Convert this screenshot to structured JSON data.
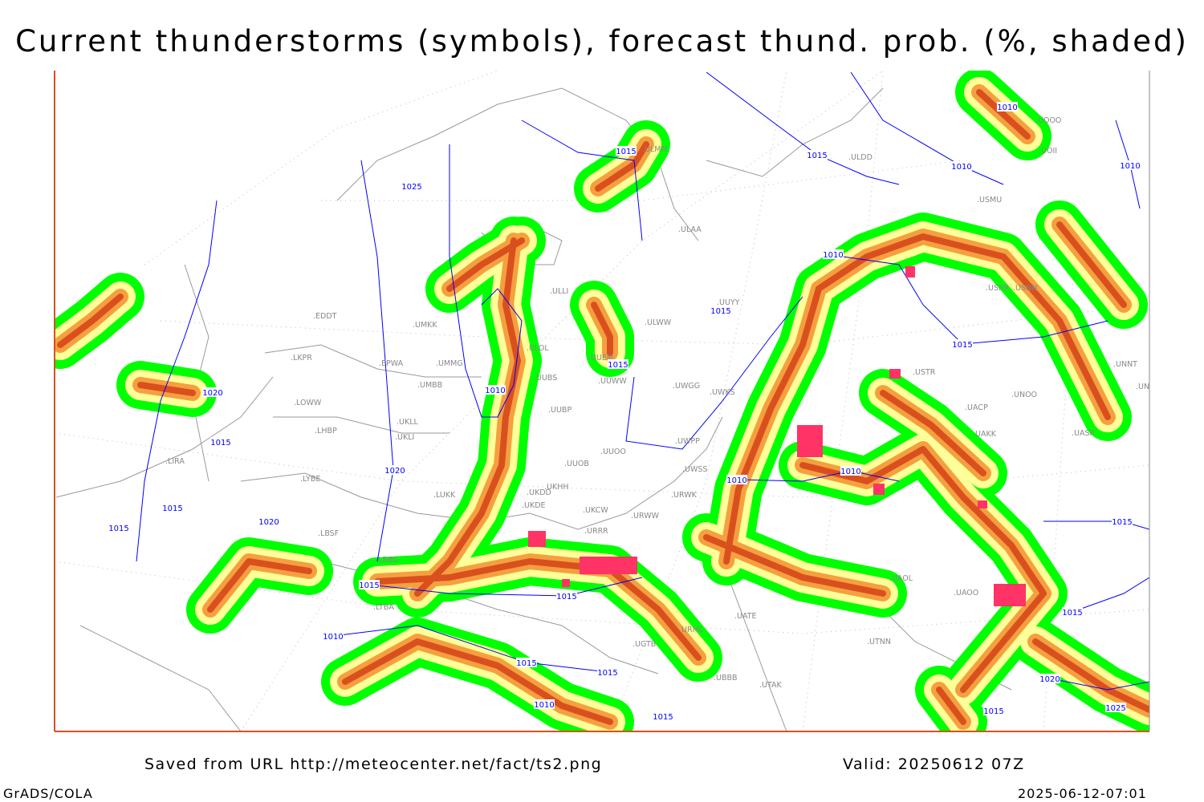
{
  "title": "Current thunderstorms (symbols), forecast thund. prob. (%, shaded)",
  "footer": {
    "source": "Saved from URL http://meteocenter.net/fact/ts2.png",
    "valid": "Valid: 20250612 07Z",
    "software": "GrADS/COLA",
    "timestamp": "2025-06-12-07:01"
  },
  "colors": {
    "prob_low": "#00ff00",
    "prob_mid": "#ffff99",
    "prob_high": "#f5a040",
    "prob_max": "#d9501e",
    "thunderstorm_symbol": "#ff3366",
    "isobars": "#0000ff",
    "coastlines_borders": "#999999"
  },
  "stations": [
    "EDDT",
    "LKPR",
    "EPWA",
    "UMKK",
    "UMMG",
    "UMBB",
    "LOWW",
    "LHBP",
    "UKLL",
    "UKLI",
    "LYBE",
    "LUKK",
    "LBSF",
    "LBBG",
    "LTBA",
    "UKHH",
    "UKDD",
    "UKDE",
    "UKCW",
    "URRR",
    "URWW",
    "UWPP",
    "UWSS",
    "URWK",
    "UWGG",
    "UWKS",
    "ULWW",
    "UUWW",
    "UUEM",
    "ULOL",
    "UUBS",
    "UUBP",
    "UUOO",
    "UUOB",
    "ULAA",
    "ULLI",
    "ULDD",
    "ULMM",
    "UUYY",
    "USTR",
    "UACP",
    "UNOO",
    "UNNT",
    "UNBB",
    "UASP",
    "UAKK",
    "UAOL",
    "UAOO",
    "UATE",
    "UTAK",
    "UTNN",
    "URML",
    "UBBB",
    "UGTB",
    "USMU",
    "USNN",
    "USRR",
    "UOOO",
    "UOII",
    "LIRA"
  ],
  "isobar_labels": [
    "1010",
    "1015",
    "1015",
    "1010",
    "1010",
    "1025",
    "1010",
    "1015",
    "1015",
    "1015",
    "1010",
    "1020",
    "1015",
    "1020",
    "1010",
    "1010",
    "1015",
    "1015",
    "1020",
    "1015",
    "1015",
    "1015",
    "1015",
    "1010",
    "1015",
    "1015",
    "1020",
    "1010",
    "1025",
    "1015",
    "1015"
  ]
}
